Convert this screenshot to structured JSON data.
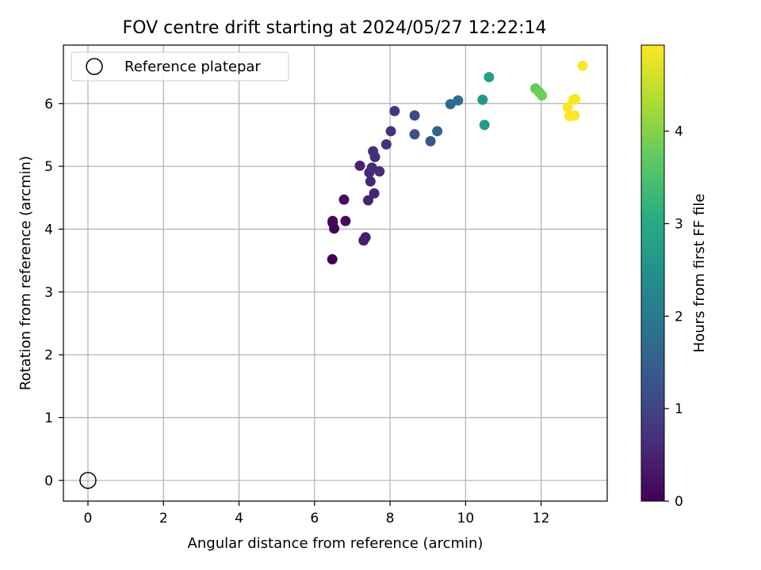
{
  "chart_data": {
    "type": "scatter",
    "title": "FOV centre drift starting at 2024/05/27 12:22:14",
    "xlabel": "Angular distance from reference (arcmin)",
    "ylabel": "Rotation from reference (arcmin)",
    "xlim": [
      -0.65,
      13.75
    ],
    "ylim": [
      -0.33,
      6.93
    ],
    "xticks": [
      0,
      2,
      4,
      6,
      8,
      10,
      12
    ],
    "yticks": [
      0,
      1,
      2,
      3,
      4,
      5,
      6
    ],
    "grid": true,
    "legend": {
      "position": "top-left",
      "entries": [
        "Reference platepar"
      ]
    },
    "reference_point": {
      "label": "Reference platepar",
      "x": 0,
      "y": 0
    },
    "colorbar": {
      "label": "Hours from first FF file",
      "colormap": "viridis",
      "min": 0,
      "max": 4.93,
      "ticks": [
        0,
        1,
        2,
        3,
        4
      ]
    },
    "points": [
      {
        "x": 6.47,
        "y": 3.52,
        "c": 0.02
      },
      {
        "x": 6.52,
        "y": 4.01,
        "c": 0.05
      },
      {
        "x": 6.48,
        "y": 4.1,
        "c": 0.06
      },
      {
        "x": 6.48,
        "y": 4.13,
        "c": 0.07
      },
      {
        "x": 6.82,
        "y": 4.13,
        "c": 0.1
      },
      {
        "x": 6.78,
        "y": 4.47,
        "c": 0.14
      },
      {
        "x": 7.3,
        "y": 3.82,
        "c": 0.4
      },
      {
        "x": 7.35,
        "y": 3.87,
        "c": 0.42
      },
      {
        "x": 7.2,
        "y": 5.01,
        "c": 0.45
      },
      {
        "x": 7.42,
        "y": 4.46,
        "c": 0.48
      },
      {
        "x": 7.58,
        "y": 4.57,
        "c": 0.52
      },
      {
        "x": 7.48,
        "y": 4.76,
        "c": 0.55
      },
      {
        "x": 7.45,
        "y": 4.9,
        "c": 0.56
      },
      {
        "x": 7.52,
        "y": 4.98,
        "c": 0.57
      },
      {
        "x": 7.72,
        "y": 4.92,
        "c": 0.6
      },
      {
        "x": 7.6,
        "y": 5.15,
        "c": 0.62
      },
      {
        "x": 7.55,
        "y": 5.24,
        "c": 0.63
      },
      {
        "x": 7.9,
        "y": 5.35,
        "c": 0.66
      },
      {
        "x": 8.02,
        "y": 5.56,
        "c": 0.7
      },
      {
        "x": 8.12,
        "y": 5.88,
        "c": 0.74
      },
      {
        "x": 8.65,
        "y": 5.81,
        "c": 1.1
      },
      {
        "x": 8.65,
        "y": 5.51,
        "c": 1.2
      },
      {
        "x": 9.07,
        "y": 5.4,
        "c": 1.3
      },
      {
        "x": 9.25,
        "y": 5.56,
        "c": 1.55
      },
      {
        "x": 9.6,
        "y": 5.99,
        "c": 1.65
      },
      {
        "x": 9.8,
        "y": 6.05,
        "c": 1.75
      },
      {
        "x": 10.45,
        "y": 6.06,
        "c": 2.6
      },
      {
        "x": 10.5,
        "y": 5.66,
        "c": 2.7
      },
      {
        "x": 10.62,
        "y": 6.42,
        "c": 2.8
      },
      {
        "x": 11.85,
        "y": 6.24,
        "c": 3.75
      },
      {
        "x": 11.95,
        "y": 6.18,
        "c": 3.8
      },
      {
        "x": 12.02,
        "y": 6.13,
        "c": 3.85
      },
      {
        "x": 12.7,
        "y": 5.94,
        "c": 4.9
      },
      {
        "x": 12.75,
        "y": 5.8,
        "c": 4.91
      },
      {
        "x": 12.88,
        "y": 5.81,
        "c": 4.92
      },
      {
        "x": 12.85,
        "y": 6.06,
        "c": 4.92
      },
      {
        "x": 12.9,
        "y": 6.07,
        "c": 4.93
      },
      {
        "x": 13.1,
        "y": 6.6,
        "c": 4.93
      }
    ]
  }
}
